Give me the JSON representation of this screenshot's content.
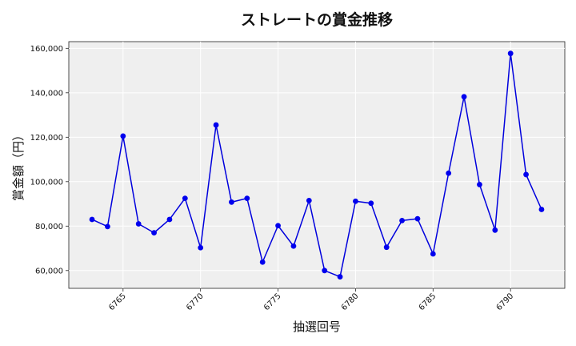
{
  "chart_data": {
    "type": "line",
    "title": "ストレートの賞金推移",
    "xlabel": "抽選回号",
    "ylabel": "賞金額（円）",
    "xlim": [
      6761.5,
      6793.5
    ],
    "ylim": [
      52000,
      163000
    ],
    "x_ticks": [
      6765,
      6770,
      6775,
      6780,
      6785,
      6790
    ],
    "y_ticks": [
      60000,
      80000,
      100000,
      120000,
      140000,
      160000
    ],
    "y_tick_labels": [
      "60,000",
      "80,000",
      "100,000",
      "120,000",
      "140,000",
      "160,000"
    ],
    "grid": true,
    "colors": {
      "line": "#0000dd",
      "marker": "#0000ee",
      "plot_bg": "#efefef",
      "grid": "#ffffff"
    },
    "series": [
      {
        "x": [
          6763,
          6764,
          6765,
          6766,
          6767,
          6768,
          6769,
          6770,
          6771,
          6772,
          6773,
          6774,
          6775,
          6776,
          6777,
          6778,
          6779,
          6780,
          6781,
          6782,
          6783,
          6784,
          6785,
          6786,
          6787,
          6788,
          6789,
          6790,
          6791,
          6792
        ],
        "values": [
          83000,
          79800,
          120500,
          81000,
          77000,
          83000,
          92500,
          70300,
          125500,
          90800,
          92500,
          63800,
          80200,
          71000,
          91500,
          60000,
          57200,
          91200,
          90300,
          70500,
          82500,
          83300,
          67500,
          103800,
          138200,
          98700,
          78200,
          157700,
          103200,
          87500
        ]
      }
    ]
  }
}
